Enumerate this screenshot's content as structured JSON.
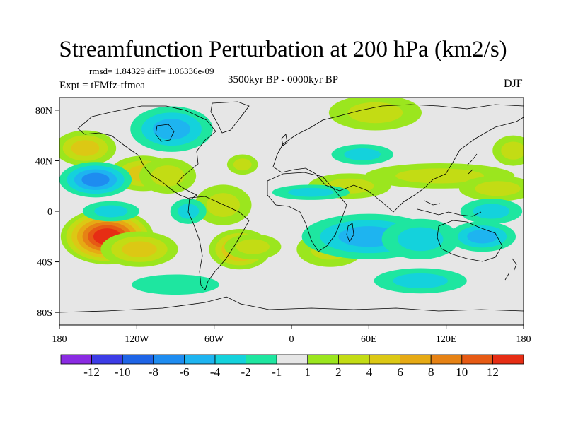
{
  "chart_data": {
    "type": "heatmap",
    "title": "Streamfunction Perturbation at 200 hPa (km2/s)",
    "stats": "rmsd= 1.84329  diff= 1.06336e-09",
    "experiment": "Expt = tFMfz-tfmea",
    "period": "3500kyr BP - 0000kyr BP",
    "season": "DJF",
    "x_range": [
      -180,
      180
    ],
    "y_range": [
      -90,
      90
    ],
    "x_ticks": [
      {
        "value": -180,
        "label": "180"
      },
      {
        "value": -120,
        "label": "120W"
      },
      {
        "value": -60,
        "label": "60W"
      },
      {
        "value": 0,
        "label": "0"
      },
      {
        "value": 60,
        "label": "60E"
      },
      {
        "value": 120,
        "label": "120E"
      },
      {
        "value": 180,
        "label": "180"
      }
    ],
    "y_ticks": [
      {
        "value": 80,
        "label": "80N"
      },
      {
        "value": 40,
        "label": "40N"
      },
      {
        "value": 0,
        "label": "0"
      },
      {
        "value": -40,
        "label": "40S"
      },
      {
        "value": -80,
        "label": "80S"
      }
    ],
    "colorbar": {
      "colors": [
        "#8a2be2",
        "#3c3ce6",
        "#1e64e6",
        "#1e8cf0",
        "#1eb4f0",
        "#14d2dc",
        "#1ee6a0",
        "#e6e6e6",
        "#9be61e",
        "#c3dc14",
        "#dcc814",
        "#e6aa14",
        "#e68214",
        "#e65a14",
        "#e62d14"
      ],
      "labels": [
        "-12",
        "-10",
        "-8",
        "-6",
        "-4",
        "-2",
        "-1",
        "1",
        "2",
        "4",
        "6",
        "8",
        "10",
        "12"
      ]
    },
    "anomalies": [
      {
        "lon": -143,
        "lat": -20,
        "value": 13,
        "rx": 36,
        "ry": 22
      },
      {
        "lon": -118,
        "lat": -30,
        "value": 5,
        "rx": 30,
        "ry": 14
      },
      {
        "lon": -40,
        "lat": -30,
        "value": 7,
        "rx": 24,
        "ry": 16
      },
      {
        "lon": -53,
        "lat": 5,
        "value": 3,
        "rx": 22,
        "ry": 16
      },
      {
        "lon": -115,
        "lat": 30,
        "value": 5,
        "rx": 26,
        "ry": 14
      },
      {
        "lon": -96,
        "lat": 28,
        "value": 3,
        "rx": 22,
        "ry": 14
      },
      {
        "lon": -160,
        "lat": 50,
        "value": 4,
        "rx": 24,
        "ry": 14
      },
      {
        "lon": -38,
        "lat": 37,
        "value": 2,
        "rx": 12,
        "ry": 8
      },
      {
        "lon": 65,
        "lat": 78,
        "value": 2,
        "rx": 36,
        "ry": 14
      },
      {
        "lon": 45,
        "lat": 20,
        "value": 3,
        "rx": 32,
        "ry": 10
      },
      {
        "lon": 115,
        "lat": 28,
        "value": 2,
        "rx": 58,
        "ry": 10
      },
      {
        "lon": 172,
        "lat": 48,
        "value": 2,
        "rx": 16,
        "ry": 12
      },
      {
        "lon": 160,
        "lat": 18,
        "value": 2,
        "rx": 30,
        "ry": 10
      },
      {
        "lon": 30,
        "lat": -30,
        "value": 3,
        "rx": 26,
        "ry": 14
      },
      {
        "lon": -30,
        "lat": -28,
        "value": 2,
        "rx": 22,
        "ry": 10
      },
      {
        "lon": -93,
        "lat": 65,
        "value": -4,
        "rx": 32,
        "ry": 18
      },
      {
        "lon": -152,
        "lat": 25,
        "value": -7,
        "rx": 28,
        "ry": 14
      },
      {
        "lon": -140,
        "lat": 0,
        "value": -2,
        "rx": 22,
        "ry": 8
      },
      {
        "lon": -80,
        "lat": 0,
        "value": -2,
        "rx": 14,
        "ry": 10
      },
      {
        "lon": 60,
        "lat": -20,
        "value": -4,
        "rx": 52,
        "ry": 18
      },
      {
        "lon": 100,
        "lat": -22,
        "value": -3,
        "rx": 30,
        "ry": 16
      },
      {
        "lon": 148,
        "lat": -20,
        "value": -5,
        "rx": 26,
        "ry": 12
      },
      {
        "lon": 55,
        "lat": 45,
        "value": -2,
        "rx": 24,
        "ry": 8
      },
      {
        "lon": 15,
        "lat": 15,
        "value": -2,
        "rx": 30,
        "ry": 6
      },
      {
        "lon": 100,
        "lat": -55,
        "value": -2,
        "rx": 36,
        "ry": 10
      },
      {
        "lon": -90,
        "lat": -58,
        "value": -1,
        "rx": 34,
        "ry": 8
      },
      {
        "lon": 155,
        "lat": 0,
        "value": -2,
        "rx": 24,
        "ry": 10
      }
    ]
  }
}
